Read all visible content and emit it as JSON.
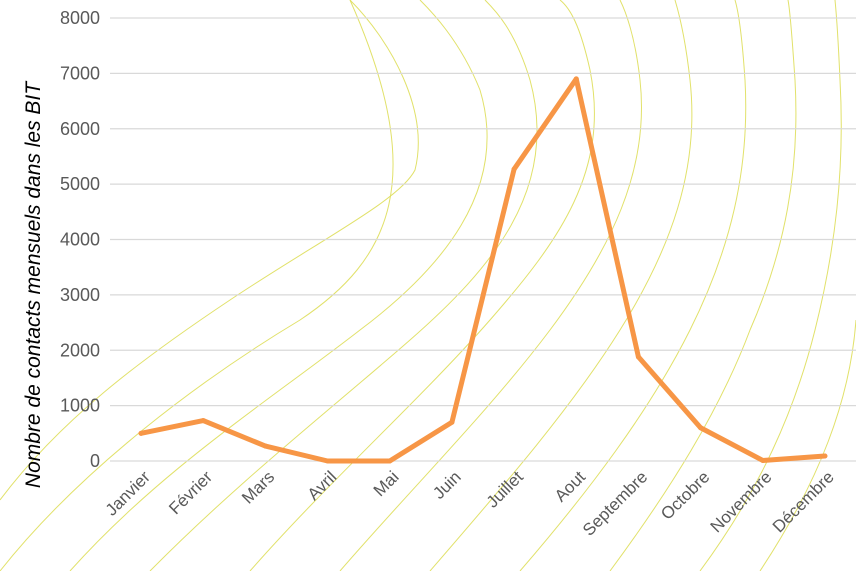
{
  "chart_data": {
    "type": "line",
    "ylabel": "Nombre de contacts mensuels dans les BIT",
    "categories": [
      "Janvier",
      "Février",
      "Mars",
      "Avril",
      "Mai",
      "Juin",
      "Juillet",
      "Aout",
      "Septembre",
      "Octobre",
      "Novembre",
      "Décembre"
    ],
    "series": [
      {
        "values": [
          500,
          730,
          270,
          0,
          0,
          700,
          5270,
          6900,
          1880,
          600,
          10,
          90
        ]
      }
    ],
    "yticks": [
      0,
      1000,
      2000,
      3000,
      4000,
      5000,
      6000,
      7000,
      8000
    ],
    "ylim": [
      0,
      8000
    ],
    "grid": true,
    "colors": {
      "line": "#f79646",
      "grid": "#d9d9d9",
      "text": "#595959",
      "decorative_curves": "#dede5a"
    }
  }
}
